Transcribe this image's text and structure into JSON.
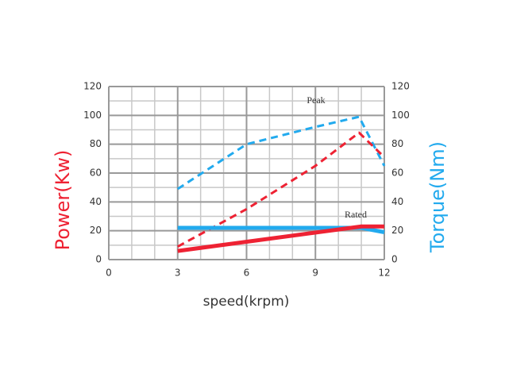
{
  "chart_data": {
    "type": "line",
    "x_label": "speed(krpm)",
    "y_label": "Power(Kw)",
    "y2_label": "Torque(Nm)",
    "y_label_color": "#ee2233",
    "y2_label_color": "#22aaee",
    "xlim": [
      0,
      12
    ],
    "xticks": [
      0,
      3,
      6,
      9,
      12
    ],
    "ylim": [
      0,
      120
    ],
    "yticks": [
      0,
      20,
      40,
      60,
      80,
      100,
      120
    ],
    "y2lim": [
      0,
      120
    ],
    "y2ticks": [
      0,
      20,
      40,
      60,
      80,
      100,
      120
    ],
    "grid": true,
    "annotations": [
      "Peak",
      "Rated"
    ],
    "series": [
      {
        "color": "#22aaee",
        "style": "dashed",
        "axis": "y2",
        "x": [
          3,
          6,
          9,
          10.9,
          12
        ],
        "values": [
          49,
          80,
          92,
          99,
          65
        ]
      },
      {
        "color": "#ee2233",
        "style": "dashed",
        "axis": "y",
        "x": [
          3,
          6,
          9,
          10.9,
          12
        ],
        "values": [
          9,
          35,
          65,
          88,
          71
        ]
      },
      {
        "color": "#22aaee",
        "style": "solid",
        "axis": "y2",
        "x": [
          3,
          11,
          12
        ],
        "values": [
          22,
          22,
          19
        ]
      },
      {
        "color": "#ee2233",
        "style": "solid",
        "axis": "y",
        "x": [
          3,
          11,
          12
        ],
        "values": [
          6,
          23,
          23
        ]
      }
    ]
  }
}
